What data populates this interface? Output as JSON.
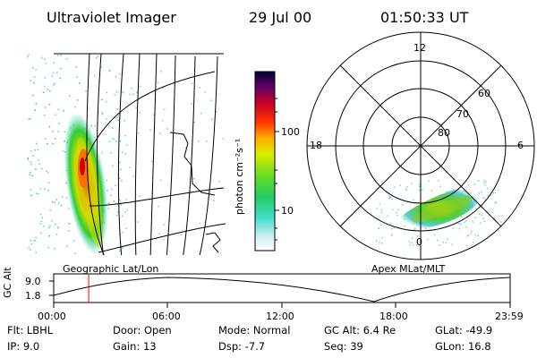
{
  "header": {
    "title": "Ultraviolet Imager",
    "date": "29 Jul 00",
    "time": "01:50:33 UT"
  },
  "colorbar": {
    "label": "photon cm⁻²s⁻¹",
    "ticks": [
      "100",
      "10"
    ]
  },
  "polar": {
    "mlt_labels": [
      "12",
      "18",
      "6",
      "0"
    ],
    "lat_labels": [
      "60",
      "70",
      "80"
    ]
  },
  "panel_labels": {
    "left": "Geographic Lat/Lon",
    "right": "Apex MLat/MLT"
  },
  "altitude_plot": {
    "ylabel": "GC Alt",
    "yticks": [
      "9.0",
      "1.8"
    ],
    "xticks": [
      "00:00",
      "06:00",
      "12:00",
      "18:00",
      "23:59"
    ],
    "current_time_hours": 1.84
  },
  "info": {
    "flt": "Flt:  LBHL",
    "ip": "IP:  9.0",
    "door": "Door:  Open",
    "gain": "Gain:  13",
    "mode": "Mode:  Normal",
    "dsp": "Dsp:      -7.7",
    "gcalt": "GC Alt:  6.4 Re",
    "seq": "Seq:  39",
    "glat": "GLat:   -49.9",
    "glon": "GLon:    16.8"
  },
  "colors": {
    "current_time_marker": "#ff0000"
  }
}
